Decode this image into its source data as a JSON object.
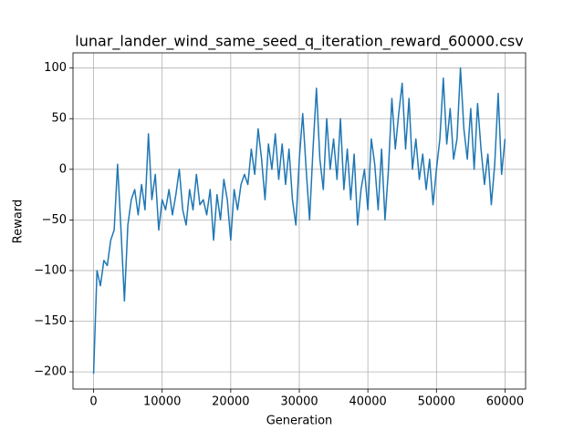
{
  "chart_data": {
    "type": "line",
    "title": "lunar_lander_wind_same_seed_q_iteration_reward_60000.csv",
    "x_label": "Generation",
    "y_label": "Reward",
    "x": [
      0,
      500,
      1000,
      1500,
      2000,
      2500,
      3000,
      3500,
      4000,
      4500,
      5000,
      5500,
      6000,
      6500,
      7000,
      7500,
      8000,
      8500,
      9000,
      9500,
      10000,
      10500,
      11000,
      11500,
      12000,
      12500,
      13000,
      13500,
      14000,
      14500,
      15000,
      15500,
      16000,
      16500,
      17000,
      17500,
      18000,
      18500,
      19000,
      19500,
      20000,
      20500,
      21000,
      21500,
      22000,
      22500,
      23000,
      23500,
      24000,
      24500,
      25000,
      25500,
      26000,
      26500,
      27000,
      27500,
      28000,
      28500,
      29000,
      29500,
      30000,
      30500,
      31000,
      31500,
      32000,
      32500,
      33000,
      33500,
      34000,
      34500,
      35000,
      35500,
      36000,
      36500,
      37000,
      37500,
      38000,
      38500,
      39000,
      39500,
      40000,
      40500,
      41000,
      41500,
      42000,
      42500,
      43000,
      43500,
      44000,
      44500,
      45000,
      45500,
      46000,
      46500,
      47000,
      47500,
      48000,
      48500,
      49000,
      49500,
      50000,
      50500,
      51000,
      51500,
      52000,
      52500,
      53000,
      53500,
      54000,
      54500,
      55000,
      55500,
      56000,
      56500,
      57000,
      57500,
      58000,
      58500,
      59000,
      59500,
      60000
    ],
    "series": [
      {
        "name": "Reward",
        "color": "#1f77b4",
        "values": [
          -202,
          -100,
          -115,
          -90,
          -95,
          -70,
          -60,
          5,
          -60,
          -130,
          -55,
          -30,
          -20,
          -45,
          -15,
          -40,
          35,
          -30,
          -5,
          -60,
          -30,
          -40,
          -20,
          -45,
          -25,
          0,
          -40,
          -55,
          -20,
          -40,
          -5,
          -35,
          -30,
          -45,
          -20,
          -70,
          -25,
          -50,
          -10,
          -30,
          -70,
          -20,
          -40,
          -15,
          -5,
          -15,
          20,
          -5,
          40,
          10,
          -30,
          25,
          0,
          35,
          -10,
          25,
          -15,
          20,
          -30,
          -55,
          10,
          55,
          0,
          -50,
          20,
          80,
          10,
          -20,
          50,
          0,
          30,
          -10,
          50,
          -20,
          20,
          -30,
          15,
          -55,
          -20,
          0,
          -40,
          30,
          5,
          -40,
          20,
          -50,
          0,
          70,
          20,
          55,
          85,
          20,
          70,
          0,
          30,
          -10,
          15,
          -20,
          10,
          -35,
          0,
          30,
          90,
          25,
          60,
          10,
          30,
          100,
          40,
          10,
          60,
          0,
          65,
          20,
          -15,
          15,
          -35,
          5,
          75,
          -5,
          30
        ]
      }
    ],
    "xlim": [
      -3000,
      63000
    ],
    "ylim": [
      -217,
      115
    ],
    "xticks": [
      0,
      10000,
      20000,
      30000,
      40000,
      50000,
      60000
    ],
    "yticks": [
      {
        "value": -200,
        "label": "−200"
      },
      {
        "value": -150,
        "label": "−150"
      },
      {
        "value": -100,
        "label": "−100"
      },
      {
        "value": -50,
        "label": "−50"
      },
      0,
      50,
      100
    ],
    "grid": true
  }
}
